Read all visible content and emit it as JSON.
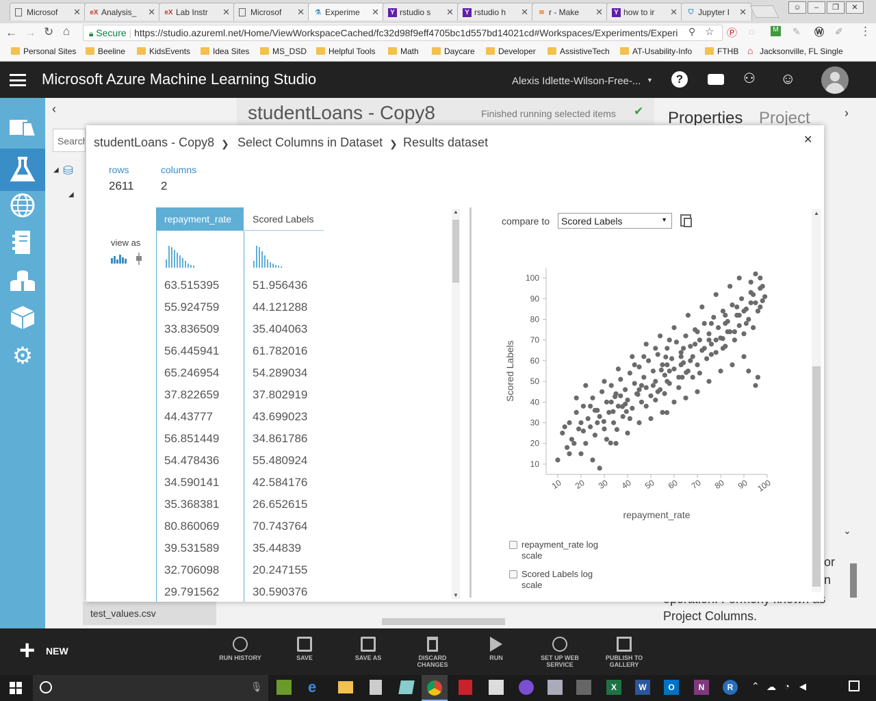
{
  "browser": {
    "tabs": [
      {
        "title": "Microsof",
        "icon": "document-icon"
      },
      {
        "title": "Analysis_",
        "icon": "edx-icon"
      },
      {
        "title": "Lab Instr",
        "icon": "edx-icon"
      },
      {
        "title": "Microsof",
        "icon": "document-icon"
      },
      {
        "title": "Experime",
        "icon": "flask-icon"
      },
      {
        "title": "rstudio s",
        "icon": "yahoo-icon"
      },
      {
        "title": "rstudio h",
        "icon": "yahoo-icon"
      },
      {
        "title": "r - Make",
        "icon": "stackoverflow-icon"
      },
      {
        "title": "how to ir",
        "icon": "yahoo-icon"
      },
      {
        "title": "Jupyter I",
        "icon": "shield-icon"
      }
    ],
    "secure_label": "Secure",
    "url": "https://studio.azureml.net/Home/ViewWorkspaceCached/fc32d98f9eff4705bc1d557bd14021cd#Workspaces/Experiments/Experi",
    "bookmarks": [
      "Personal Sites",
      "Beeline",
      "KidsEvents",
      "Idea Sites",
      "MS_DSD",
      "Helpful Tools",
      "Math",
      "Daycare",
      "Developer",
      "AssistiveTech",
      "AT-Usability-Info",
      "FTHB",
      "Jacksonville, FL Single"
    ]
  },
  "app": {
    "title": "Microsoft Azure Machine Learning Studio",
    "user": "Alexis Idlette-Wilson-Free-..."
  },
  "background": {
    "experiment_title": "studentLoans - Copy8",
    "status": "Finished running selected items",
    "search_placeholder": "Search",
    "panel_tabs": [
      "Properties",
      "Project"
    ],
    "dataset_item": "test_values.csv",
    "help_text": [
      "or",
      "n",
      "operation. Formerly known as",
      "Project Columns."
    ]
  },
  "bottom_bar": {
    "new_label": "NEW",
    "buttons": [
      "RUN HISTORY",
      "SAVE",
      "SAVE AS",
      "DISCARD CHANGES",
      "RUN",
      "SET UP WEB SERVICE",
      "PUBLISH TO GALLERY"
    ]
  },
  "modal": {
    "breadcrumb": [
      "studentLoans - Copy8",
      "Select Columns in Dataset",
      "Results dataset"
    ],
    "rows_label": "rows",
    "rows_value": "2611",
    "columns_label": "columns",
    "columns_value": "2",
    "view_as_label": "view as",
    "columns": [
      "repayment_rate",
      "Scored Labels"
    ],
    "table_rows": [
      [
        "63.515395",
        "51.956436"
      ],
      [
        "55.924759",
        "44.121288"
      ],
      [
        "33.836509",
        "35.404063"
      ],
      [
        "56.445941",
        "61.782016"
      ],
      [
        "65.246954",
        "54.289034"
      ],
      [
        "37.822659",
        "37.802919"
      ],
      [
        "44.43777",
        "43.699023"
      ],
      [
        "56.851449",
        "34.861786"
      ],
      [
        "54.478436",
        "55.480924"
      ],
      [
        "34.590141",
        "42.584176"
      ],
      [
        "35.368381",
        "26.652615"
      ],
      [
        "80.860069",
        "70.743764"
      ],
      [
        "39.531589",
        "35.44839"
      ],
      [
        "32.706098",
        "20.247155"
      ],
      [
        "29.791562",
        "30.590376"
      ]
    ],
    "compare_label": "compare to",
    "compare_value": "Scored Labels",
    "log_options": [
      "repayment_rate log scale",
      "Scored Labels log scale"
    ]
  },
  "chart_data": {
    "type": "scatter",
    "xlabel": "repayment_rate",
    "ylabel": "Scored Labels",
    "xlim": [
      5,
      100
    ],
    "ylim": [
      5,
      105
    ],
    "xticks": [
      10,
      20,
      30,
      40,
      50,
      60,
      70,
      80,
      90,
      100
    ],
    "yticks": [
      10,
      20,
      30,
      40,
      50,
      60,
      70,
      80,
      90,
      100
    ],
    "color": "#6b6b6b",
    "points": [
      [
        63.5,
        52.0
      ],
      [
        55.9,
        44.1
      ],
      [
        33.8,
        35.4
      ],
      [
        56.4,
        61.8
      ],
      [
        65.2,
        54.3
      ],
      [
        37.8,
        37.8
      ],
      [
        44.4,
        43.7
      ],
      [
        56.9,
        34.9
      ],
      [
        54.5,
        55.5
      ],
      [
        34.6,
        42.6
      ],
      [
        35.4,
        26.7
      ],
      [
        80.9,
        70.7
      ],
      [
        39.5,
        35.4
      ],
      [
        32.7,
        20.2
      ],
      [
        29.8,
        30.6
      ],
      [
        10,
        12
      ],
      [
        12,
        25
      ],
      [
        14,
        18
      ],
      [
        15,
        30
      ],
      [
        16,
        22
      ],
      [
        18,
        35
      ],
      [
        19,
        27
      ],
      [
        20,
        15
      ],
      [
        21,
        38
      ],
      [
        22,
        20
      ],
      [
        23,
        32
      ],
      [
        24,
        28
      ],
      [
        25,
        42
      ],
      [
        26,
        24
      ],
      [
        27,
        36
      ],
      [
        28,
        33
      ],
      [
        29,
        45
      ],
      [
        30,
        27
      ],
      [
        31,
        40
      ],
      [
        32,
        35
      ],
      [
        33,
        48
      ],
      [
        34,
        30
      ],
      [
        35,
        44
      ],
      [
        36,
        38
      ],
      [
        37,
        51
      ],
      [
        38,
        33
      ],
      [
        39,
        46
      ],
      [
        40,
        41
      ],
      [
        41,
        54
      ],
      [
        42,
        37
      ],
      [
        43,
        49
      ],
      [
        44,
        44
      ],
      [
        45,
        57
      ],
      [
        46,
        40
      ],
      [
        47,
        52
      ],
      [
        48,
        47
      ],
      [
        49,
        60
      ],
      [
        50,
        43
      ],
      [
        51,
        55
      ],
      [
        52,
        50
      ],
      [
        53,
        63
      ],
      [
        54,
        46
      ],
      [
        55,
        58
      ],
      [
        56,
        53
      ],
      [
        57,
        66
      ],
      [
        58,
        49
      ],
      [
        59,
        61
      ],
      [
        60,
        56
      ],
      [
        61,
        69
      ],
      [
        62,
        52
      ],
      [
        63,
        64
      ],
      [
        64,
        59
      ],
      [
        65,
        72
      ],
      [
        66,
        55
      ],
      [
        67,
        67
      ],
      [
        68,
        62
      ],
      [
        69,
        75
      ],
      [
        70,
        58
      ],
      [
        71,
        70
      ],
      [
        72,
        65
      ],
      [
        73,
        78
      ],
      [
        74,
        61
      ],
      [
        75,
        73
      ],
      [
        76,
        68
      ],
      [
        77,
        81
      ],
      [
        78,
        64
      ],
      [
        79,
        76
      ],
      [
        80,
        71
      ],
      [
        81,
        84
      ],
      [
        82,
        67
      ],
      [
        83,
        79
      ],
      [
        84,
        74
      ],
      [
        85,
        87
      ],
      [
        86,
        70
      ],
      [
        87,
        82
      ],
      [
        88,
        77
      ],
      [
        89,
        90
      ],
      [
        90,
        73
      ],
      [
        91,
        85
      ],
      [
        92,
        80
      ],
      [
        93,
        93
      ],
      [
        94,
        76
      ],
      [
        95,
        88
      ],
      [
        96,
        84
      ],
      [
        97,
        95
      ],
      [
        98,
        89
      ],
      [
        99,
        91
      ],
      [
        95,
        102
      ],
      [
        93,
        98
      ],
      [
        18,
        42
      ],
      [
        22,
        48
      ],
      [
        25,
        12
      ],
      [
        28,
        8
      ],
      [
        35,
        20
      ],
      [
        40,
        25
      ],
      [
        45,
        30
      ],
      [
        50,
        32
      ],
      [
        55,
        35
      ],
      [
        60,
        40
      ],
      [
        65,
        42
      ],
      [
        70,
        45
      ],
      [
        75,
        50
      ],
      [
        80,
        55
      ],
      [
        85,
        58
      ],
      [
        90,
        62
      ],
      [
        92,
        55
      ],
      [
        95,
        48
      ],
      [
        96,
        52
      ],
      [
        20,
        30
      ],
      [
        24,
        38
      ],
      [
        30,
        50
      ],
      [
        36,
        56
      ],
      [
        42,
        62
      ],
      [
        48,
        68
      ],
      [
        54,
        72
      ],
      [
        60,
        76
      ],
      [
        66,
        82
      ],
      [
        72,
        86
      ],
      [
        78,
        92
      ],
      [
        84,
        96
      ],
      [
        88,
        100
      ],
      [
        13,
        28
      ],
      [
        17,
        20
      ],
      [
        26,
        36
      ],
      [
        31,
        22
      ],
      [
        37,
        43
      ],
      [
        41,
        32
      ],
      [
        46,
        48
      ],
      [
        52,
        41
      ],
      [
        57,
        50
      ],
      [
        62,
        47
      ],
      [
        67,
        60
      ],
      [
        71,
        54
      ],
      [
        76,
        63
      ],
      [
        81,
        66
      ],
      [
        86,
        74
      ],
      [
        91,
        78
      ],
      [
        97,
        86
      ],
      [
        43,
        58
      ],
      [
        48,
        38
      ],
      [
        53,
        45
      ],
      [
        58,
        55
      ],
      [
        63,
        58
      ],
      [
        68,
        52
      ],
      [
        73,
        66
      ],
      [
        78,
        70
      ],
      [
        83,
        74
      ],
      [
        88,
        82
      ],
      [
        93,
        88
      ],
      [
        98,
        96
      ],
      [
        47,
        62
      ],
      [
        52,
        66
      ],
      [
        58,
        70
      ],
      [
        64,
        66
      ],
      [
        70,
        74
      ],
      [
        76,
        78
      ],
      [
        82,
        82
      ],
      [
        87,
        86
      ],
      [
        94,
        92
      ],
      [
        15,
        15
      ],
      [
        21,
        26
      ],
      [
        27,
        30
      ],
      [
        33,
        40
      ],
      [
        39,
        39
      ],
      [
        45,
        46
      ],
      [
        51,
        48
      ],
      [
        57,
        58
      ],
      [
        63,
        62
      ],
      [
        69,
        68
      ],
      [
        75,
        70
      ],
      [
        82,
        78
      ],
      [
        90,
        84
      ],
      [
        97,
        100
      ]
    ]
  }
}
